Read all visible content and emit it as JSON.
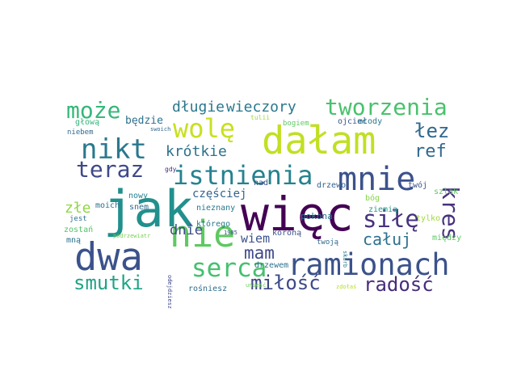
{
  "words": [
    {
      "text": "jak",
      "color": "#21908d"
    },
    {
      "text": "więc",
      "color": "#440154"
    },
    {
      "text": "dwa",
      "color": "#3b528b"
    },
    {
      "text": "nie",
      "color": "#5ec962"
    },
    {
      "text": "dałam",
      "color": "#c2df23"
    },
    {
      "text": "mnie",
      "color": "#3b528b"
    },
    {
      "text": "ramionach",
      "color": "#3b528b"
    },
    {
      "text": "istnienia",
      "color": "#26828e"
    },
    {
      "text": "nikt",
      "color": "#2a788e"
    },
    {
      "text": "wolę",
      "color": "#c8e020"
    },
    {
      "text": "tworzenia",
      "color": "#4ac16d"
    },
    {
      "text": "może",
      "color": "#35b779"
    },
    {
      "text": "długie",
      "color": "#2a788e"
    },
    {
      "text": "wieczory",
      "color": "#2a788e"
    },
    {
      "text": "łez",
      "color": "#31688e"
    },
    {
      "text": "ref",
      "color": "#31688e"
    },
    {
      "text": "kres",
      "color": "#46327e"
    },
    {
      "text": "siłę",
      "color": "#46327e"
    },
    {
      "text": "teraz",
      "color": "#3e4989"
    },
    {
      "text": "krótkie",
      "color": "#2c728e"
    },
    {
      "text": "serca",
      "color": "#46c06f"
    },
    {
      "text": "smutki",
      "color": "#20a486"
    },
    {
      "text": "miłość",
      "color": "#3e4989"
    },
    {
      "text": "radość",
      "color": "#472d7b"
    },
    {
      "text": "mam",
      "color": "#3e4989"
    },
    {
      "text": "całuj",
      "color": "#2c728e"
    },
    {
      "text": "częściej",
      "color": "#33638d"
    },
    {
      "text": "dnie",
      "color": "#3e4989"
    },
    {
      "text": "złe",
      "color": "#8fd744"
    },
    {
      "text": "wiem",
      "color": "#3b528b"
    },
    {
      "text": "będzie",
      "color": "#2d718e"
    },
    {
      "text": "pokona",
      "color": "#2a788e"
    },
    {
      "text": "drzewem",
      "color": "#2d708e"
    },
    {
      "text": "drzewo",
      "color": "#33638d"
    },
    {
      "text": "koroną",
      "color": "#3b528b"
    },
    {
      "text": "którego",
      "color": "#2a788e"
    },
    {
      "text": "nieznany",
      "color": "#2a788e"
    },
    {
      "text": "rośniesz",
      "color": "#2e6e8e"
    },
    {
      "text": "snem",
      "color": "#306a8e"
    },
    {
      "text": "moich",
      "color": "#2c728e"
    },
    {
      "text": "nowy",
      "color": "#26828e"
    },
    {
      "text": "jest",
      "color": "#2c728e"
    },
    {
      "text": "zostań",
      "color": "#52c569"
    },
    {
      "text": "mną",
      "color": "#2c728e"
    },
    {
      "text": "głową",
      "color": "#35b779"
    },
    {
      "text": "niebem",
      "color": "#31688e"
    },
    {
      "text": "bogiem",
      "color": "#5ec962"
    },
    {
      "text": "ojciec",
      "color": "#3b528b"
    },
    {
      "text": "młody",
      "color": "#2a788e"
    },
    {
      "text": "twój",
      "color": "#3b528b"
    },
    {
      "text": "nad",
      "color": "#3b528b"
    },
    {
      "text": "szlak",
      "color": "#5ec962"
    },
    {
      "text": "tylko",
      "color": "#a0da39"
    },
    {
      "text": "bóg",
      "color": "#86d549"
    },
    {
      "text": "ziemią",
      "color": "#1f9e89"
    },
    {
      "text": "między",
      "color": "#5ec962"
    },
    {
      "text": "twoją",
      "color": "#31688e"
    },
    {
      "text": "gdy",
      "color": "#472d7b"
    },
    {
      "text": "tulii",
      "color": "#9fda3a"
    },
    {
      "text": "swoich",
      "color": "#31688e"
    },
    {
      "text": "1985",
      "color": "#3b528b"
    },
    {
      "text": "podrzewiatr",
      "color": "#7ad151"
    },
    {
      "text": "odejdziesz",
      "color": "#3e4989"
    },
    {
      "text": "unieść",
      "color": "#6ece58"
    },
    {
      "text": "zdołaś",
      "color": "#b5de2b"
    },
    {
      "text": "skarb",
      "color": "#2a788e"
    }
  ]
}
